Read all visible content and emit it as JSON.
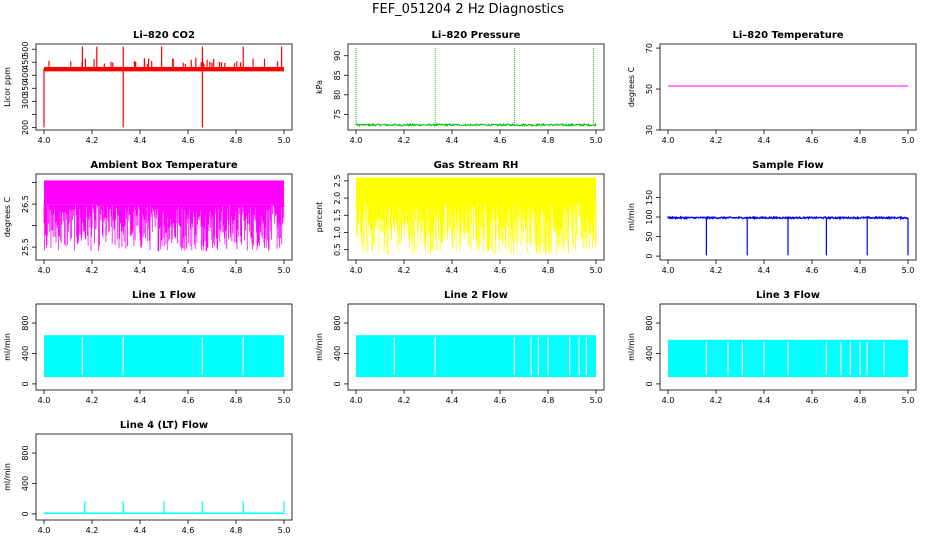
{
  "main_title": "FEF_051204  2 Hz Diagnostics",
  "chart_data": [
    {
      "type": "line",
      "title": "Li–820 CO2",
      "ylabel": "Licor ppm",
      "color": "#ff0000",
      "xlim": [
        4.0,
        5.0
      ],
      "ylim": [
        190,
        520
      ],
      "yticks": [
        200,
        250,
        300,
        350,
        400,
        450,
        500
      ],
      "ytick_labels": [
        "200",
        "",
        "300",
        "350",
        "400",
        "450",
        "500"
      ],
      "xticks": [
        4.0,
        4.2,
        4.4,
        4.6,
        4.8,
        5.0
      ],
      "xtick_labels": [
        "4.0",
        "4.2",
        "4.4",
        "4.6",
        "4.8",
        "5.0"
      ],
      "pattern": "co2",
      "baseline": 425,
      "band": [
        415,
        432
      ],
      "spikes_up": [
        4.16,
        4.22,
        4.33,
        4.49,
        4.66,
        4.83,
        4.99
      ],
      "spike_top": 510,
      "dips": [
        4.0,
        4.33,
        4.66
      ],
      "dip_low": 200
    },
    {
      "type": "line",
      "title": "Li–820 Pressure",
      "ylabel": "kPa",
      "color": "#00c000",
      "xlim": [
        4.0,
        5.0
      ],
      "ylim": [
        71,
        93
      ],
      "yticks": [
        75,
        80,
        85,
        90
      ],
      "ytick_labels": [
        "75",
        "80",
        "85",
        "90"
      ],
      "xticks": [
        4.0,
        4.2,
        4.4,
        4.6,
        4.8,
        5.0
      ],
      "xtick_labels": [
        "4.0",
        "4.2",
        "4.4",
        "4.6",
        "4.8",
        "5.0"
      ],
      "pattern": "pressure",
      "baseline": 72.3,
      "spikes_up": [
        4.0,
        4.33,
        4.66,
        4.99
      ],
      "spike_top": 92
    },
    {
      "type": "line",
      "title": "Li–820 Temperature",
      "ylabel": "degrees C",
      "color": "#ff00ff",
      "xlim": [
        4.0,
        5.0
      ],
      "ylim": [
        30,
        72
      ],
      "yticks": [
        30,
        50,
        70
      ],
      "ytick_labels": [
        "30",
        "50",
        "70"
      ],
      "xticks": [
        4.0,
        4.2,
        4.4,
        4.6,
        4.8,
        5.0
      ],
      "xtick_labels": [
        "4.0",
        "4.2",
        "4.4",
        "4.6",
        "4.8",
        "5.0"
      ],
      "pattern": "flat",
      "baseline": 51.5
    },
    {
      "type": "line",
      "title": "Ambient Box Temperature",
      "ylabel": "degrees C",
      "color": "#ff00ff",
      "xlim": [
        4.0,
        5.0
      ],
      "ylim": [
        25.2,
        27.2
      ],
      "yticks": [
        25.5,
        26.0,
        26.5,
        27.0
      ],
      "ytick_labels": [
        "25.5",
        "",
        "26.5",
        ""
      ],
      "xticks": [
        4.0,
        4.2,
        4.4,
        4.6,
        4.8,
        5.0
      ],
      "xtick_labels": [
        "4.0",
        "4.2",
        "4.4",
        "4.6",
        "4.8",
        "5.0"
      ],
      "pattern": "noise",
      "band": [
        26.5,
        27.05
      ],
      "low": 25.4
    },
    {
      "type": "line",
      "title": "Gas Stream RH",
      "ylabel": "percent",
      "color": "#ffff00",
      "xlim": [
        4.0,
        5.0
      ],
      "ylim": [
        0.2,
        2.7
      ],
      "yticks": [
        0.5,
        1.0,
        1.5,
        2.0,
        2.5
      ],
      "ytick_labels": [
        "0.5",
        "1.0",
        "1.5",
        "2.0",
        "2.5"
      ],
      "xticks": [
        4.0,
        4.2,
        4.4,
        4.6,
        4.8,
        5.0
      ],
      "xtick_labels": [
        "4.0",
        "4.2",
        "4.4",
        "4.6",
        "4.8",
        "5.0"
      ],
      "pattern": "noise",
      "band": [
        1.9,
        2.6
      ],
      "low": 0.35
    },
    {
      "type": "line",
      "title": "Sample Flow",
      "ylabel": "ml/min",
      "color": "#0000ff",
      "xlim": [
        4.0,
        5.0
      ],
      "ylim": [
        -10,
        210
      ],
      "yticks": [
        0,
        50,
        100,
        150
      ],
      "ytick_labels": [
        "0",
        "50",
        "100",
        "150"
      ],
      "xticks": [
        4.0,
        4.2,
        4.4,
        4.6,
        4.8,
        5.0
      ],
      "xtick_labels": [
        "4.0",
        "4.2",
        "4.4",
        "4.6",
        "4.8",
        "5.0"
      ],
      "pattern": "sample",
      "baseline": 98,
      "dips": [
        4.16,
        4.33,
        4.5,
        4.66,
        4.83,
        5.0
      ],
      "dip_low": 2
    },
    {
      "type": "line",
      "title": "Line 1 Flow",
      "ylabel": "ml/min",
      "color": "#00ffff",
      "xlim": [
        4.0,
        5.0
      ],
      "ylim": [
        -80,
        1050
      ],
      "yticks": [
        0,
        400,
        800
      ],
      "ytick_labels": [
        "0",
        "400",
        "800"
      ],
      "xticks": [
        4.0,
        4.2,
        4.4,
        4.6,
        4.8,
        5.0
      ],
      "xtick_labels": [
        "4.0",
        "4.2",
        "4.4",
        "4.6",
        "4.8",
        "5.0"
      ],
      "pattern": "block",
      "band": [
        90,
        640
      ],
      "gaps": [
        4.16,
        4.33,
        4.66,
        4.83
      ]
    },
    {
      "type": "line",
      "title": "Line 2 Flow",
      "ylabel": "ml/min",
      "color": "#00ffff",
      "xlim": [
        4.0,
        5.0
      ],
      "ylim": [
        -80,
        1050
      ],
      "yticks": [
        0,
        400,
        800
      ],
      "ytick_labels": [
        "0",
        "400",
        "800"
      ],
      "xticks": [
        4.0,
        4.2,
        4.4,
        4.6,
        4.8,
        5.0
      ],
      "xtick_labels": [
        "4.0",
        "4.2",
        "4.4",
        "4.6",
        "4.8",
        "5.0"
      ],
      "pattern": "block",
      "band": [
        90,
        640
      ],
      "gaps": [
        4.16,
        4.33,
        4.66,
        4.73,
        4.76,
        4.8,
        4.89,
        4.93,
        4.96
      ]
    },
    {
      "type": "line",
      "title": "Line 3 Flow",
      "ylabel": "ml/min",
      "color": "#00ffff",
      "xlim": [
        4.0,
        5.0
      ],
      "ylim": [
        -80,
        1050
      ],
      "yticks": [
        0,
        400,
        800
      ],
      "ytick_labels": [
        "0",
        "400",
        "800"
      ],
      "xticks": [
        4.0,
        4.2,
        4.4,
        4.6,
        4.8,
        5.0
      ],
      "xtick_labels": [
        "4.0",
        "4.2",
        "4.4",
        "4.6",
        "4.8",
        "5.0"
      ],
      "pattern": "block",
      "band": [
        90,
        580
      ],
      "gaps": [
        4.16,
        4.25,
        4.31,
        4.4,
        4.5,
        4.66,
        4.72,
        4.76,
        4.8,
        4.83,
        4.9
      ]
    },
    {
      "type": "line",
      "title": "Line 4 (LT) Flow",
      "ylabel": "ml/min",
      "color": "#00ffff",
      "xlim": [
        4.0,
        5.0
      ],
      "ylim": [
        -80,
        1050
      ],
      "yticks": [
        0,
        400,
        800
      ],
      "ytick_labels": [
        "0",
        "400",
        "800"
      ],
      "xticks": [
        4.0,
        4.2,
        4.4,
        4.6,
        4.8,
        5.0
      ],
      "xtick_labels": [
        "4.0",
        "4.2",
        "4.4",
        "4.6",
        "4.8",
        "5.0"
      ],
      "pattern": "lt",
      "baseline": 8,
      "spikes_up": [
        4.17,
        4.33,
        4.5,
        4.66,
        4.83,
        5.0
      ],
      "spike_top": 170
    }
  ]
}
